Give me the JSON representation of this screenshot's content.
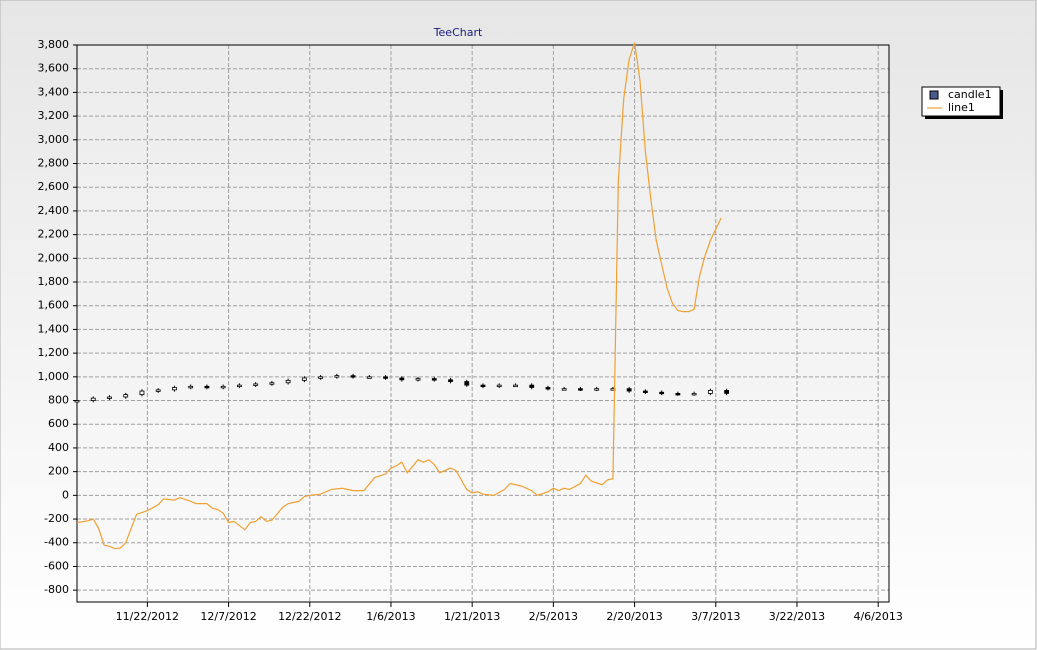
{
  "chart_data": {
    "type": "combo",
    "title": "TeeChart",
    "xlim": [
      "2012-11-09",
      "2013-04-08"
    ],
    "xticks": [
      {
        "value": "2012-11-22",
        "label": "11/22/2012"
      },
      {
        "value": "2012-12-07",
        "label": "12/7/2012"
      },
      {
        "value": "2012-12-22",
        "label": "12/22/2012"
      },
      {
        "value": "2013-01-06",
        "label": "1/6/2013"
      },
      {
        "value": "2013-01-21",
        "label": "1/21/2013"
      },
      {
        "value": "2013-02-05",
        "label": "2/5/2013"
      },
      {
        "value": "2013-02-20",
        "label": "2/20/2013"
      },
      {
        "value": "2013-03-07",
        "label": "3/7/2013"
      },
      {
        "value": "2013-03-22",
        "label": "3/22/2013"
      },
      {
        "value": "2013-04-06",
        "label": "4/6/2013"
      }
    ],
    "ylim": [
      -900,
      3800
    ],
    "yticks": [
      -800,
      -600,
      -400,
      -200,
      0,
      200,
      400,
      600,
      800,
      {
        "value": 1000,
        "label": "1,000"
      },
      {
        "value": 1200,
        "label": "1,200"
      },
      {
        "value": 1400,
        "label": "1,400"
      },
      {
        "value": 1600,
        "label": "1,600"
      },
      {
        "value": 1800,
        "label": "1,800"
      },
      {
        "value": 2000,
        "label": "2,000"
      },
      {
        "value": 2200,
        "label": "2,200"
      },
      {
        "value": 2400,
        "label": "2,400"
      },
      {
        "value": 2600,
        "label": "2,600"
      },
      {
        "value": 2800,
        "label": "2,800"
      },
      {
        "value": 3000,
        "label": "3,000"
      },
      {
        "value": 3200,
        "label": "3,200"
      },
      {
        "value": 3400,
        "label": "3,400"
      },
      {
        "value": 3600,
        "label": "3,600"
      },
      {
        "value": 3800,
        "label": "3,800"
      }
    ],
    "grid": true,
    "legend": "right",
    "series": [
      {
        "name": "candle1",
        "type": "candlestick",
        "color": "#000000",
        "x": [
          "2012-11-09",
          "2012-11-12",
          "2012-11-15",
          "2012-11-18",
          "2012-11-21",
          "2012-11-24",
          "2012-11-27",
          "2012-11-30",
          "2012-12-03",
          "2012-12-06",
          "2012-12-09",
          "2012-12-12",
          "2012-12-15",
          "2012-12-18",
          "2012-12-21",
          "2012-12-24",
          "2012-12-27",
          "2012-12-30",
          "2013-01-02",
          "2013-01-05",
          "2013-01-08",
          "2013-01-11",
          "2013-01-14",
          "2013-01-17",
          "2013-01-20",
          "2013-01-23",
          "2013-01-26",
          "2013-01-29",
          "2013-02-01",
          "2013-02-04",
          "2013-02-07",
          "2013-02-10",
          "2013-02-13",
          "2013-02-16",
          "2013-02-19",
          "2013-02-22",
          "2013-02-25",
          "2013-02-28",
          "2013-03-03",
          "2013-03-06",
          "2013-03-09"
        ],
        "open": [
          795,
          800,
          820,
          830,
          850,
          880,
          890,
          910,
          920,
          910,
          920,
          930,
          940,
          950,
          970,
          990,
          1000,
          1010,
          1000,
          1000,
          990,
          975,
          985,
          975,
          960,
          930,
          920,
          930,
          930,
          910,
          900,
          900,
          895,
          900,
          900,
          880,
          870,
          860,
          855,
          860,
          885
        ],
        "high": [
          815,
          835,
          845,
          865,
          895,
          905,
          925,
          935,
          935,
          935,
          945,
          955,
          965,
          985,
          1005,
          1015,
          1025,
          1025,
          1015,
          1015,
          1005,
          1000,
          1000,
          990,
          975,
          945,
          945,
          945,
          945,
          925,
          915,
          915,
          915,
          915,
          915,
          895,
          885,
          875,
          875,
          900,
          900
        ],
        "low": [
          780,
          785,
          805,
          815,
          835,
          865,
          875,
          895,
          895,
          895,
          905,
          915,
          925,
          935,
          955,
          975,
          985,
          985,
          985,
          975,
          960,
          960,
          960,
          945,
          915,
          905,
          905,
          915,
          895,
          885,
          885,
          880,
          880,
          885,
          865,
          855,
          845,
          840,
          840,
          845,
          845
        ],
        "close": [
          800,
          820,
          830,
          850,
          880,
          890,
          910,
          920,
          910,
          920,
          930,
          940,
          950,
          970,
          990,
          1000,
          1010,
          1000,
          1000,
          990,
          975,
          985,
          975,
          960,
          930,
          920,
          930,
          930,
          910,
          900,
          900,
          895,
          900,
          900,
          880,
          870,
          860,
          855,
          860,
          885,
          860
        ]
      },
      {
        "name": "line1",
        "type": "line",
        "color": "#f0a032",
        "x": [
          "2012-11-09",
          "2012-11-11",
          "2012-11-12",
          "2012-11-13",
          "2012-11-14",
          "2012-11-15",
          "2012-11-16",
          "2012-11-17",
          "2012-11-18",
          "2012-11-20",
          "2012-11-22",
          "2012-11-24",
          "2012-11-25",
          "2012-11-27",
          "2012-11-28",
          "2012-11-30",
          "2012-12-01",
          "2012-12-03",
          "2012-12-04",
          "2012-12-05",
          "2012-12-06",
          "2012-12-07",
          "2012-12-08",
          "2012-12-10",
          "2012-12-11",
          "2012-12-12",
          "2012-12-13",
          "2012-12-14",
          "2012-12-15",
          "2012-12-17",
          "2012-12-18",
          "2012-12-20",
          "2012-12-21",
          "2012-12-22",
          "2012-12-24",
          "2012-12-26",
          "2012-12-28",
          "2012-12-30",
          "2013-01-01",
          "2013-01-03",
          "2013-01-05",
          "2013-01-06",
          "2013-01-07",
          "2013-01-08",
          "2013-01-09",
          "2013-01-11",
          "2013-01-12",
          "2013-01-13",
          "2013-01-14",
          "2013-01-15",
          "2013-01-17",
          "2013-01-18",
          "2013-01-20",
          "2013-01-21",
          "2013-01-22",
          "2013-01-23",
          "2013-01-25",
          "2013-01-27",
          "2013-01-28",
          "2013-01-30",
          "2013-02-01",
          "2013-02-02",
          "2013-02-04",
          "2013-02-05",
          "2013-02-06",
          "2013-02-07",
          "2013-02-08",
          "2013-02-10",
          "2013-02-11",
          "2013-02-12",
          "2013-02-14",
          "2013-02-15",
          "2013-02-16",
          "2013-02-17",
          "2013-02-18",
          "2013-02-19",
          "2013-02-20",
          "2013-02-21",
          "2013-02-22",
          "2013-02-23",
          "2013-02-24",
          "2013-02-25",
          "2013-02-26",
          "2013-02-27",
          "2013-02-28",
          "2013-03-01",
          "2013-03-02",
          "2013-03-03",
          "2013-03-04",
          "2013-03-05",
          "2013-03-06",
          "2013-03-08"
        ],
        "values": [
          -230,
          -215,
          -200,
          -280,
          -420,
          -430,
          -450,
          -445,
          -400,
          -160,
          -130,
          -80,
          -30,
          -40,
          -20,
          -50,
          -70,
          -70,
          -110,
          -120,
          -150,
          -230,
          -220,
          -290,
          -230,
          -220,
          -180,
          -220,
          -210,
          -100,
          -70,
          -50,
          -10,
          0,
          10,
          50,
          60,
          40,
          40,
          150,
          180,
          230,
          250,
          280,
          190,
          300,
          280,
          300,
          260,
          190,
          230,
          210,
          50,
          20,
          30,
          10,
          0,
          50,
          100,
          80,
          40,
          0,
          30,
          60,
          40,
          60,
          50,
          100,
          170,
          120,
          90,
          130,
          140,
          2650,
          3350,
          3680,
          3820,
          3500,
          2900,
          2500,
          2150,
          1950,
          1750,
          1620,
          1560,
          1550,
          1550,
          1570,
          1850,
          2020,
          2150,
          2340
        ]
      }
    ]
  }
}
